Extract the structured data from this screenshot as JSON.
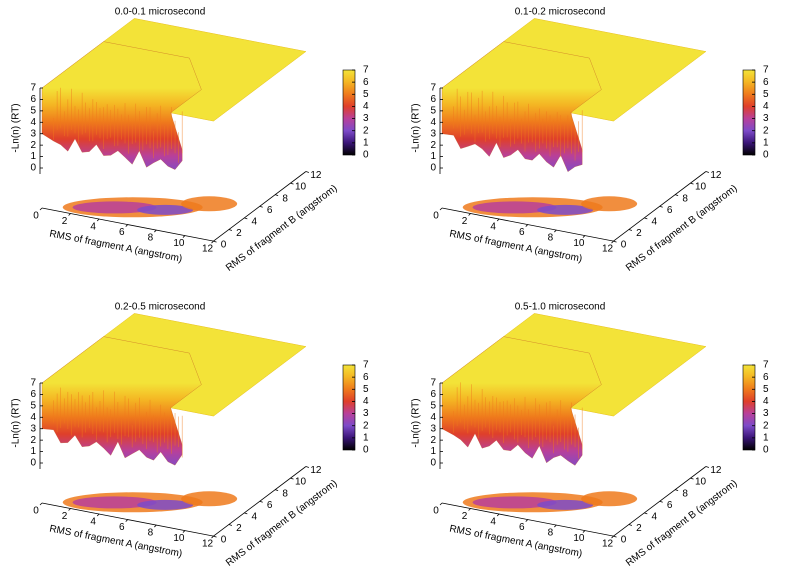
{
  "chart_data": [
    {
      "type": "surface3d",
      "title": "0.0-0.1 microsecond",
      "xlabel": "RMS of fragment A (angstrom)",
      "ylabel": "RMS of fragment B (angstrom)",
      "zlabel": "-Ln(n) (RT)",
      "xlim": [
        0,
        12
      ],
      "ylim": [
        0,
        12
      ],
      "zlim": [
        0,
        7
      ],
      "xticks": [
        0,
        2,
        4,
        6,
        8,
        10,
        12
      ],
      "yticks": [
        0,
        2,
        4,
        6,
        8,
        10,
        12
      ],
      "zticks": [
        0,
        1,
        2,
        3,
        4,
        5,
        6,
        7
      ],
      "colorbar_lim": [
        0,
        7
      ],
      "colorbar_ticks": [
        0,
        1,
        2,
        3,
        4,
        5,
        6,
        7
      ],
      "colormap": [
        "#000000",
        "#3a1577",
        "#7d4bc9",
        "#b8409a",
        "#df3f2a",
        "#ef7a1c",
        "#f4b523",
        "#f3e338"
      ]
    },
    {
      "type": "surface3d",
      "title": "0.1-0.2 microsecond",
      "xlabel": "RMS of fragment A (angstrom)",
      "ylabel": "RMS of fragment B (angstrom)",
      "zlabel": "-Ln(n) (RT)",
      "xlim": [
        0,
        12
      ],
      "ylim": [
        0,
        12
      ],
      "zlim": [
        0,
        7
      ],
      "xticks": [
        0,
        2,
        4,
        6,
        8,
        10,
        12
      ],
      "yticks": [
        0,
        2,
        4,
        6,
        8,
        10,
        12
      ],
      "zticks": [
        0,
        1,
        2,
        3,
        4,
        5,
        6,
        7
      ],
      "colorbar_lim": [
        0,
        7
      ],
      "colorbar_ticks": [
        0,
        1,
        2,
        3,
        4,
        5,
        6,
        7
      ],
      "colormap": [
        "#000000",
        "#3a1577",
        "#7d4bc9",
        "#b8409a",
        "#df3f2a",
        "#ef7a1c",
        "#f4b523",
        "#f3e338"
      ]
    },
    {
      "type": "surface3d",
      "title": "0.2-0.5 microsecond",
      "xlabel": "RMS of fragment A (angstrom)",
      "ylabel": "RMS of fragment B (angstrom)",
      "zlabel": "-Ln(n) (RT)",
      "xlim": [
        0,
        12
      ],
      "ylim": [
        0,
        12
      ],
      "zlim": [
        0,
        7
      ],
      "xticks": [
        0,
        2,
        4,
        6,
        8,
        10,
        12
      ],
      "yticks": [
        0,
        2,
        4,
        6,
        8,
        10,
        12
      ],
      "zticks": [
        0,
        1,
        2,
        3,
        4,
        5,
        6,
        7
      ],
      "colorbar_lim": [
        0,
        7
      ],
      "colorbar_ticks": [
        0,
        1,
        2,
        3,
        4,
        5,
        6,
        7
      ],
      "colormap": [
        "#000000",
        "#3a1577",
        "#7d4bc9",
        "#b8409a",
        "#df3f2a",
        "#ef7a1c",
        "#f4b523",
        "#f3e338"
      ]
    },
    {
      "type": "surface3d",
      "title": "0.5-1.0 microsecond",
      "xlabel": "RMS of fragment A (angstrom)",
      "ylabel": "RMS of fragment B (angstrom)",
      "zlabel": "-Ln(n) (RT)",
      "xlim": [
        0,
        12
      ],
      "ylim": [
        0,
        12
      ],
      "zlim": [
        0,
        7
      ],
      "xticks": [
        0,
        2,
        4,
        6,
        8,
        10,
        12
      ],
      "yticks": [
        0,
        2,
        4,
        6,
        8,
        10,
        12
      ],
      "zticks": [
        0,
        1,
        2,
        3,
        4,
        5,
        6,
        7
      ],
      "colorbar_lim": [
        0,
        7
      ],
      "colorbar_ticks": [
        0,
        1,
        2,
        3,
        4,
        5,
        6,
        7
      ],
      "colormap": [
        "#000000",
        "#3a1577",
        "#7d4bc9",
        "#b8409a",
        "#df3f2a",
        "#ef7a1c",
        "#f4b523",
        "#f3e338"
      ]
    }
  ]
}
